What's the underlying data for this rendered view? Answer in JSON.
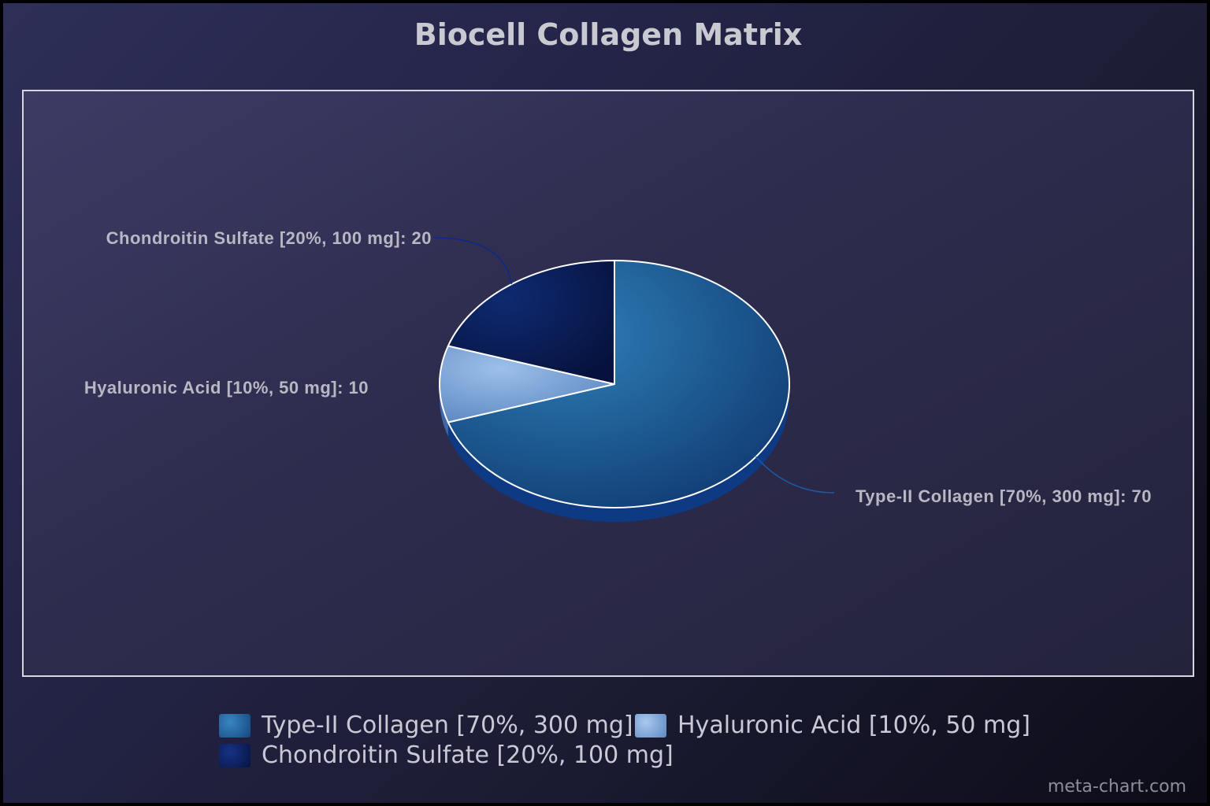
{
  "chart_data": {
    "type": "pie",
    "title": "Biocell Collagen Matrix",
    "slices": [
      {
        "name": "Type-II Collagen [70%, 300 mg]",
        "value": 70,
        "label": "Type-II Collagen [70%, 300 mg]: 70",
        "color": "#1f5a93"
      },
      {
        "name": "Hyaluronic Acid [10%, 50 mg]",
        "value": 10,
        "label": "Hyaluronic Acid [10%, 50 mg]: 10",
        "color": "#7aa3d8"
      },
      {
        "name": "Chondroitin Sulfate [20%, 100 mg]",
        "value": 20,
        "label": "Chondroitin Sulfate [20%, 100 mg]: 20",
        "color": "#0c1f5c"
      }
    ],
    "legend_position": "bottom",
    "style": "3d"
  },
  "watermark": "meta-chart.com"
}
